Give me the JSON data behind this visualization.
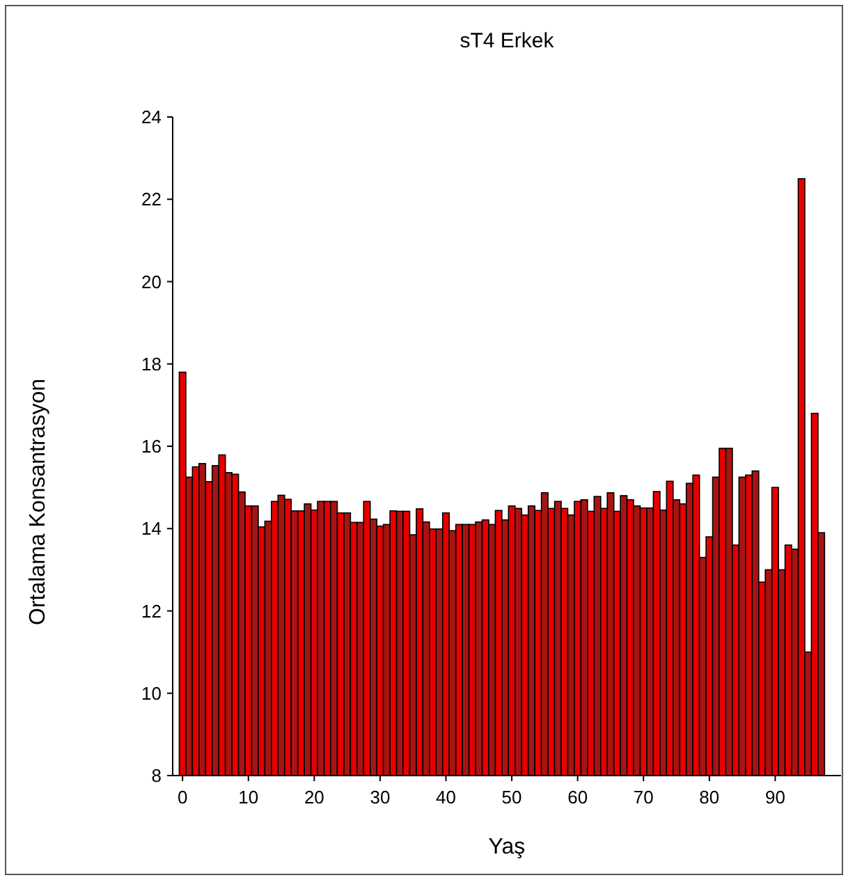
{
  "chart_data": {
    "type": "bar",
    "title": "sT4 Erkek",
    "xlabel": "Yaş",
    "ylabel": "Ortalama Konsantrasyon",
    "x": [
      0,
      1,
      2,
      3,
      4,
      5,
      6,
      7,
      8,
      9,
      10,
      11,
      12,
      13,
      14,
      15,
      16,
      17,
      18,
      19,
      20,
      21,
      22,
      23,
      24,
      25,
      26,
      27,
      28,
      29,
      30,
      31,
      32,
      33,
      34,
      35,
      36,
      37,
      38,
      39,
      40,
      41,
      42,
      43,
      44,
      45,
      46,
      47,
      48,
      49,
      50,
      51,
      52,
      53,
      54,
      55,
      56,
      57,
      58,
      59,
      60,
      61,
      62,
      63,
      64,
      65,
      66,
      67,
      68,
      69,
      70,
      71,
      72,
      73,
      74,
      75,
      76,
      77,
      78,
      79,
      80,
      81,
      82,
      83,
      84,
      85,
      86,
      87,
      88,
      89,
      90,
      91,
      92,
      93,
      94,
      95,
      96,
      97
    ],
    "values": [
      17.8,
      15.25,
      15.5,
      15.58,
      15.14,
      15.53,
      15.79,
      15.36,
      15.32,
      14.89,
      14.55,
      14.55,
      14.04,
      14.18,
      14.66,
      14.81,
      14.71,
      14.43,
      14.43,
      14.6,
      14.45,
      14.66,
      14.66,
      14.66,
      14.38,
      14.38,
      14.15,
      14.15,
      14.66,
      14.23,
      14.06,
      14.1,
      14.43,
      14.42,
      14.42,
      13.85,
      14.48,
      14.16,
      13.99,
      13.99,
      14.38,
      13.95,
      14.1,
      14.1,
      14.1,
      14.16,
      14.21,
      14.1,
      14.44,
      14.21,
      14.55,
      14.49,
      14.33,
      14.55,
      14.44,
      14.87,
      14.49,
      14.66,
      14.49,
      14.33,
      14.66,
      14.7,
      14.42,
      14.78,
      14.49,
      14.87,
      14.42,
      14.8,
      14.7,
      14.55,
      14.5,
      14.5,
      14.9,
      14.45,
      15.15,
      14.7,
      14.6,
      15.1,
      15.3,
      13.3,
      13.8,
      15.25,
      15.95,
      15.95,
      13.6,
      15.25,
      15.3,
      15.4,
      12.7,
      13.0,
      15.0,
      13.0,
      13.6,
      13.5,
      22.5,
      11.0,
      16.8,
      13.9
    ],
    "colors": [
      "#e60000",
      "#a81414",
      "#e60000",
      "#a81414",
      "#e60000",
      "#a81414",
      "#e60000",
      "#a81414",
      "#e60000",
      "#a81414",
      "#e60000",
      "#a81414",
      "#e60000",
      "#a81414",
      "#e60000",
      "#a81414",
      "#e60000",
      "#a81414",
      "#e60000",
      "#a81414",
      "#e60000",
      "#a81414",
      "#e60000",
      "#a81414",
      "#e60000",
      "#a81414",
      "#e60000",
      "#a81414",
      "#e60000",
      "#a81414",
      "#e60000",
      "#a81414",
      "#e60000",
      "#a81414",
      "#e60000",
      "#a81414",
      "#e60000",
      "#a81414",
      "#e60000",
      "#a81414",
      "#e60000",
      "#a81414",
      "#e60000",
      "#a81414",
      "#e60000",
      "#a81414",
      "#e60000",
      "#a81414",
      "#e60000",
      "#a81414",
      "#e60000",
      "#a81414",
      "#e60000",
      "#a81414",
      "#e60000",
      "#a81414",
      "#e60000",
      "#a81414",
      "#e60000",
      "#a81414",
      "#e60000",
      "#a81414",
      "#e60000",
      "#a81414",
      "#e60000",
      "#a81414",
      "#e60000",
      "#a81414",
      "#e60000",
      "#a81414",
      "#e60000",
      "#a81414",
      "#e60000",
      "#a81414",
      "#e60000",
      "#a81414",
      "#e60000",
      "#a81414",
      "#e60000",
      "#a81414",
      "#e60000",
      "#a81414",
      "#e60000",
      "#a81414",
      "#e60000",
      "#a81414",
      "#e60000",
      "#a81414",
      "#e60000",
      "#a81414",
      "#e60000",
      "#a81414",
      "#e60000",
      "#a81414",
      "#e60000",
      "#a81414",
      "#e60000",
      "#a81414"
    ],
    "xlim": [
      -1.5,
      100
    ],
    "xticks": [
      0,
      10,
      20,
      30,
      40,
      50,
      60,
      70,
      80,
      90
    ],
    "ylim": [
      8,
      24
    ],
    "yticks": [
      8,
      10,
      12,
      14,
      16,
      18,
      20,
      22,
      24
    ],
    "grid": false
  }
}
